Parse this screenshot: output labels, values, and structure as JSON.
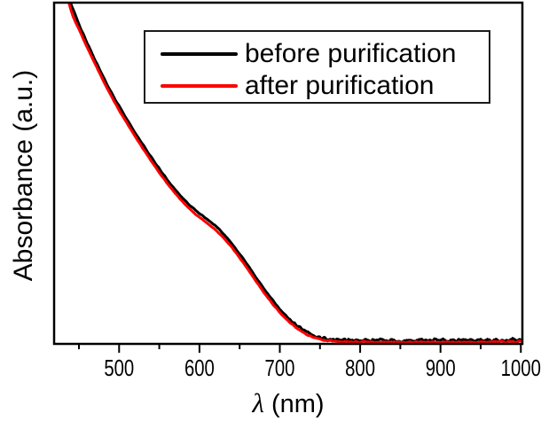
{
  "figure": {
    "background": "#ffffff",
    "axis_color": "#000000",
    "text_color": "#000000"
  },
  "chart_data": {
    "type": "line",
    "title": "",
    "xlabel_symbol": "λ",
    "xlabel_unit": "(nm)",
    "ylabel": "Absorbance (a.u.)",
    "xlim": [
      418,
      1003
    ],
    "ylim": [
      0,
      1
    ],
    "x_major_ticks": [
      500,
      600,
      700,
      800,
      900,
      1000
    ],
    "x_minor_ticks": [
      450,
      550,
      650,
      750,
      850,
      950
    ],
    "y_ticks": [],
    "grid": false,
    "legend": {
      "position": "top-right-inside",
      "border": true
    },
    "series": [
      {
        "name": "before purification",
        "color": "#000000",
        "line_width": 3,
        "noise": {
          "steep": 0.0018,
          "tail": 0.007,
          "seed": 42
        },
        "points": [
          [
            434,
            1.08
          ],
          [
            438,
            1.02
          ],
          [
            440,
            0.995
          ],
          [
            445,
            0.964
          ],
          [
            450,
            0.934
          ],
          [
            455,
            0.907
          ],
          [
            460,
            0.881
          ],
          [
            465,
            0.856
          ],
          [
            470,
            0.831
          ],
          [
            475,
            0.806
          ],
          [
            480,
            0.782
          ],
          [
            485,
            0.759
          ],
          [
            490,
            0.737
          ],
          [
            495,
            0.716
          ],
          [
            500,
            0.696
          ],
          [
            505,
            0.676
          ],
          [
            510,
            0.656
          ],
          [
            515,
            0.637
          ],
          [
            520,
            0.618
          ],
          [
            525,
            0.6
          ],
          [
            530,
            0.582
          ],
          [
            535,
            0.564
          ],
          [
            540,
            0.547
          ],
          [
            545,
            0.53
          ],
          [
            550,
            0.513
          ],
          [
            555,
            0.497
          ],
          [
            560,
            0.481
          ],
          [
            565,
            0.466
          ],
          [
            570,
            0.452
          ],
          [
            575,
            0.438
          ],
          [
            580,
            0.425
          ],
          [
            585,
            0.413
          ],
          [
            590,
            0.402
          ],
          [
            595,
            0.392
          ],
          [
            600,
            0.383
          ],
          [
            605,
            0.374
          ],
          [
            610,
            0.365
          ],
          [
            615,
            0.356
          ],
          [
            620,
            0.346
          ],
          [
            625,
            0.335
          ],
          [
            630,
            0.323
          ],
          [
            635,
            0.31
          ],
          [
            640,
            0.296
          ],
          [
            645,
            0.281
          ],
          [
            650,
            0.265
          ],
          [
            655,
            0.249
          ],
          [
            660,
            0.232
          ],
          [
            665,
            0.215
          ],
          [
            670,
            0.198
          ],
          [
            675,
            0.181
          ],
          [
            680,
            0.164
          ],
          [
            685,
            0.148
          ],
          [
            690,
            0.133
          ],
          [
            695,
            0.118
          ],
          [
            700,
            0.104
          ],
          [
            705,
            0.091
          ],
          [
            710,
            0.079
          ],
          [
            715,
            0.068
          ],
          [
            720,
            0.058
          ],
          [
            725,
            0.049
          ],
          [
            730,
            0.041
          ],
          [
            735,
            0.034
          ],
          [
            740,
            0.029
          ],
          [
            745,
            0.025
          ],
          [
            750,
            0.022
          ],
          [
            755,
            0.019
          ],
          [
            760,
            0.017
          ],
          [
            765,
            0.016
          ],
          [
            770,
            0.015
          ],
          [
            780,
            0.014
          ],
          [
            790,
            0.0135
          ],
          [
            800,
            0.013
          ],
          [
            820,
            0.0125
          ],
          [
            840,
            0.012
          ],
          [
            860,
            0.012
          ],
          [
            880,
            0.0125
          ],
          [
            900,
            0.013
          ],
          [
            920,
            0.013
          ],
          [
            940,
            0.0135
          ],
          [
            960,
            0.013
          ],
          [
            980,
            0.0135
          ],
          [
            1003,
            0.014
          ]
        ]
      },
      {
        "name": "after purification",
        "color": "#fe0000",
        "line_width": 3,
        "noise": {
          "steep": 0.0012,
          "tail": 0.0032,
          "seed": 7
        },
        "points": [
          [
            432,
            1.08
          ],
          [
            436,
            1.02
          ],
          [
            438,
            0.993
          ],
          [
            443,
            0.954
          ],
          [
            450,
            0.92
          ],
          [
            460,
            0.868
          ],
          [
            470,
            0.82
          ],
          [
            480,
            0.771
          ],
          [
            490,
            0.726
          ],
          [
            500,
            0.684
          ],
          [
            510,
            0.645
          ],
          [
            520,
            0.607
          ],
          [
            530,
            0.571
          ],
          [
            540,
            0.536
          ],
          [
            550,
            0.502
          ],
          [
            560,
            0.47
          ],
          [
            570,
            0.441
          ],
          [
            580,
            0.414
          ],
          [
            590,
            0.391
          ],
          [
            600,
            0.372
          ],
          [
            610,
            0.354
          ],
          [
            620,
            0.335
          ],
          [
            630,
            0.312
          ],
          [
            640,
            0.285
          ],
          [
            650,
            0.254
          ],
          [
            660,
            0.221
          ],
          [
            670,
            0.187
          ],
          [
            680,
            0.153
          ],
          [
            690,
            0.122
          ],
          [
            700,
            0.094
          ],
          [
            710,
            0.07
          ],
          [
            720,
            0.05
          ],
          [
            730,
            0.034
          ],
          [
            740,
            0.023
          ],
          [
            750,
            0.016
          ],
          [
            760,
            0.012
          ],
          [
            770,
            0.01
          ],
          [
            780,
            0.009
          ],
          [
            800,
            0.008
          ],
          [
            850,
            0.0075
          ],
          [
            900,
            0.0075
          ],
          [
            950,
            0.008
          ],
          [
            1003,
            0.0085
          ]
        ]
      }
    ]
  }
}
